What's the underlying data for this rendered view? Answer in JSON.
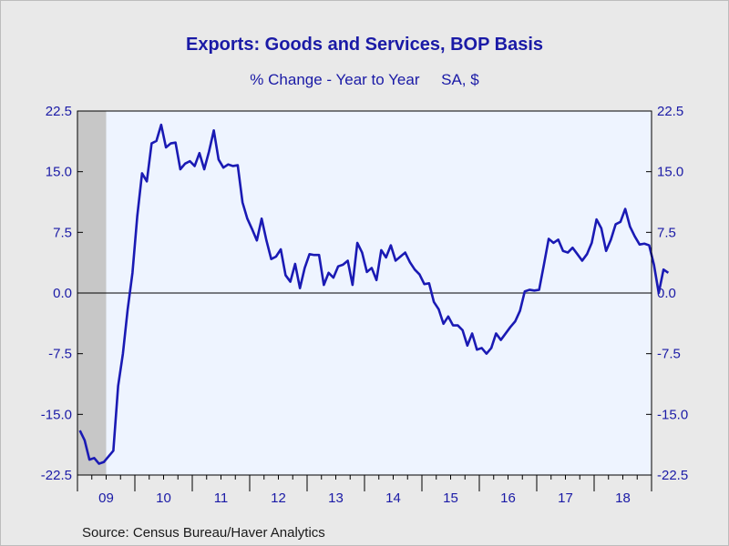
{
  "colors": {
    "background": "#e9e9e9",
    "plot_background": "#eef4ff",
    "line": "#1a1ab4",
    "text": "#1a1aa6",
    "recession_shade": "#c7c7c7"
  },
  "chart_data": {
    "type": "line",
    "title": "Exports: Goods and Services, BOP Basis",
    "subtitle": "% Change - Year to Year     SA, $",
    "source": "Source:  Census Bureau/Haver Analytics",
    "xlabel": "",
    "ylabel": "",
    "ylim": [
      -22.5,
      22.5
    ],
    "yticks": [
      "22.5",
      "15.0",
      "7.5",
      "0.0",
      "-7.5",
      "-15.0",
      "-22.5"
    ],
    "ytick_values": [
      22.5,
      15.0,
      7.5,
      0.0,
      -7.5,
      -15.0,
      -22.5
    ],
    "year_labels": [
      "09",
      "10",
      "11",
      "12",
      "13",
      "14",
      "15",
      "16",
      "17",
      "18"
    ],
    "x_start": "2009-01",
    "x_end": "2018-12",
    "grid": false,
    "zero_line": true,
    "dual_axis": true,
    "shaded_period": [
      "2009-01",
      "2009-06"
    ],
    "series": [
      {
        "values": [
          -17.0,
          -18.2,
          -20.6,
          -20.4,
          -21.1,
          -20.9,
          -20.2,
          -19.5,
          -11.5,
          -7.5,
          -2.0,
          2.5,
          9.5,
          14.8,
          13.8,
          18.5,
          18.8,
          20.8,
          18.0,
          18.5,
          18.6,
          15.3,
          16.0,
          16.3,
          15.7,
          17.3,
          15.3,
          17.5,
          20.1,
          16.5,
          15.5,
          15.9,
          15.7,
          15.8,
          11.2,
          9.2,
          7.9,
          6.5,
          9.2,
          6.5,
          4.2,
          4.5,
          5.4,
          2.2,
          1.4,
          3.6,
          0.6,
          3.1,
          4.8,
          4.7,
          4.7,
          1.0,
          2.5,
          1.9,
          3.3,
          3.5,
          4.0,
          1.0,
          6.2,
          5.0,
          2.6,
          3.1,
          1.6,
          5.3,
          4.4,
          5.9,
          4.0,
          4.5,
          5.0,
          3.8,
          2.9,
          2.3,
          1.1,
          1.2,
          -1.1,
          -2.0,
          -3.8,
          -2.9,
          -4.0,
          -4.0,
          -4.6,
          -6.5,
          -5.0,
          -7.0,
          -6.8,
          -7.5,
          -6.8,
          -5.0,
          -5.8,
          -5.0,
          -4.2,
          -3.5,
          -2.2,
          0.2,
          0.4,
          0.3,
          0.4,
          3.5,
          6.7,
          6.2,
          6.6,
          5.2,
          5.0,
          5.6,
          4.8,
          4.0,
          4.8,
          6.2,
          9.1,
          8.0,
          5.2,
          6.6,
          8.5,
          8.8,
          10.4,
          8.2,
          7.0,
          6.0,
          6.1,
          5.9,
          3.5,
          0.0,
          2.9,
          2.5
        ]
      }
    ]
  }
}
